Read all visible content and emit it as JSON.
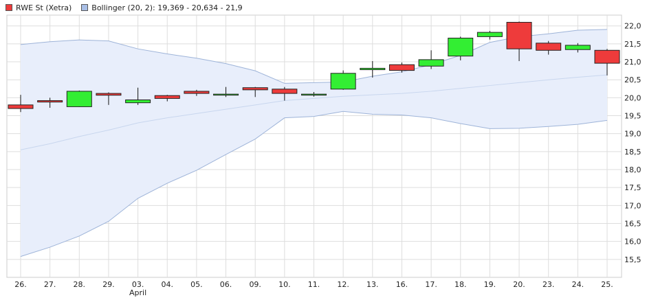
{
  "legend": {
    "series1": "RWE St (Xetra)",
    "series2": "Bollinger (20, 2): 19,369 - 20,634 - 21,9"
  },
  "colors": {
    "up": "#33ee33",
    "down": "#ee3b3b",
    "band_fill": "#e8eefb",
    "band_line": "#9db3d8",
    "grid": "#dddddd",
    "wick": "#111111",
    "legend_band": "#a9bfe6"
  },
  "chart_data": {
    "type": "candlestick",
    "title": "",
    "xlabel": "",
    "ylabel": "",
    "ylim": [
      15.0,
      22.3
    ],
    "grid": true,
    "y_ticks": [
      15.5,
      16.0,
      16.5,
      17.0,
      17.5,
      18.0,
      18.5,
      19.0,
      19.5,
      20.0,
      20.5,
      21.0,
      21.5,
      22.0
    ],
    "y_tick_labels": [
      "15,5",
      "16,0",
      "16,5",
      "17,0",
      "17,5",
      "18,0",
      "18,5",
      "19,0",
      "19,5",
      "20,0",
      "20,5",
      "21,0",
      "21,5",
      "22,0"
    ],
    "categories": [
      "26.",
      "27.",
      "28.",
      "29.",
      "03.",
      "04.",
      "05.",
      "06.",
      "09.",
      "10.",
      "11.",
      "12.",
      "13.",
      "16.",
      "17.",
      "18.",
      "19.",
      "20.",
      "23.",
      "24.",
      "25."
    ],
    "month_label": "April",
    "month_label_index": 4,
    "candles": [
      {
        "open": 19.8,
        "high": 20.08,
        "low": 19.6,
        "close": 19.7
      },
      {
        "open": 19.92,
        "high": 20.0,
        "low": 19.72,
        "close": 19.88
      },
      {
        "open": 19.75,
        "high": 20.2,
        "low": 19.74,
        "close": 20.18
      },
      {
        "open": 20.12,
        "high": 20.15,
        "low": 19.8,
        "close": 20.07
      },
      {
        "open": 19.86,
        "high": 20.28,
        "low": 19.8,
        "close": 19.94
      },
      {
        "open": 20.06,
        "high": 20.08,
        "low": 19.9,
        "close": 19.98
      },
      {
        "open": 20.18,
        "high": 20.22,
        "low": 20.05,
        "close": 20.12
      },
      {
        "open": 20.1,
        "high": 20.3,
        "low": 20.02,
        "close": 20.1
      },
      {
        "open": 20.28,
        "high": 20.3,
        "low": 20.02,
        "close": 20.22
      },
      {
        "open": 20.24,
        "high": 20.3,
        "low": 19.92,
        "close": 20.12
      },
      {
        "open": 20.1,
        "high": 20.16,
        "low": 20.03,
        "close": 20.1
      },
      {
        "open": 20.24,
        "high": 20.76,
        "low": 20.22,
        "close": 20.68
      },
      {
        "open": 20.78,
        "high": 21.02,
        "low": 20.56,
        "close": 20.82
      },
      {
        "open": 20.92,
        "high": 20.98,
        "low": 20.7,
        "close": 20.76
      },
      {
        "open": 20.88,
        "high": 21.32,
        "low": 20.8,
        "close": 21.06
      },
      {
        "open": 21.16,
        "high": 21.7,
        "low": 21.04,
        "close": 21.66
      },
      {
        "open": 21.7,
        "high": 21.86,
        "low": 21.62,
        "close": 21.82
      },
      {
        "open": 22.1,
        "high": 22.12,
        "low": 21.02,
        "close": 21.36
      },
      {
        "open": 21.52,
        "high": 21.58,
        "low": 21.2,
        "close": 21.32
      },
      {
        "open": 21.34,
        "high": 21.52,
        "low": 21.26,
        "close": 21.46
      },
      {
        "open": 21.32,
        "high": 21.36,
        "low": 20.62,
        "close": 20.96
      }
    ],
    "bollinger": {
      "upper": [
        21.48,
        21.56,
        21.61,
        21.58,
        21.36,
        21.22,
        21.1,
        20.95,
        20.75,
        20.4,
        20.42,
        20.44,
        20.6,
        20.72,
        20.92,
        21.18,
        21.54,
        21.7,
        21.78,
        21.88,
        21.9
      ],
      "middle": [
        18.55,
        18.72,
        18.92,
        19.1,
        19.3,
        19.44,
        19.56,
        19.68,
        19.8,
        19.92,
        19.98,
        20.04,
        20.08,
        20.12,
        20.18,
        20.26,
        20.34,
        20.42,
        20.5,
        20.57,
        20.634
      ],
      "lower": [
        15.58,
        15.84,
        16.15,
        16.56,
        17.2,
        17.62,
        17.98,
        18.42,
        18.85,
        19.44,
        19.48,
        19.62,
        19.54,
        19.52,
        19.44,
        19.28,
        19.14,
        19.15,
        19.2,
        19.26,
        19.369
      ]
    }
  }
}
